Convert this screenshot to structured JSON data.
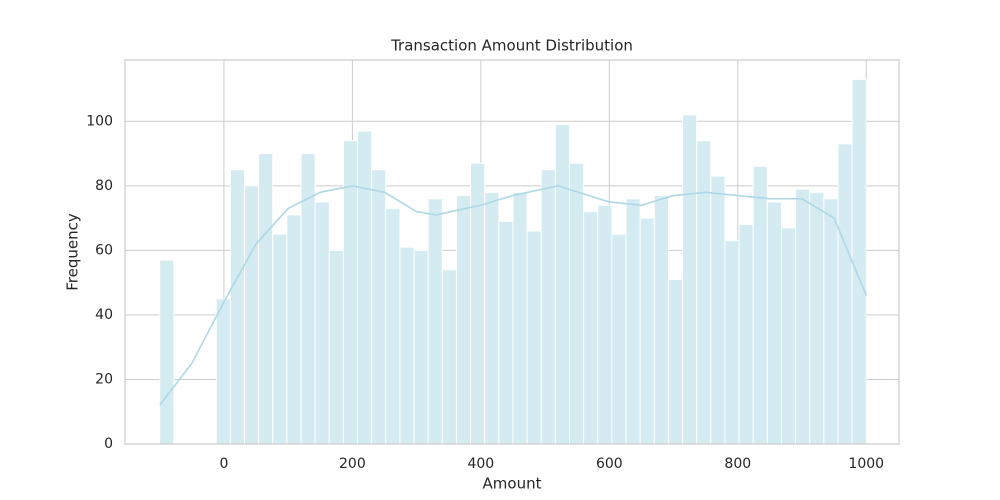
{
  "chart_data": {
    "type": "histogram",
    "title": "Transaction Amount Distribution",
    "xlabel": "Amount",
    "ylabel": "Frequency",
    "bins": [
      -100,
      -78,
      -56,
      -34,
      -12,
      10,
      32,
      54,
      76,
      98,
      120,
      142,
      164,
      186,
      208,
      230,
      252,
      274,
      296,
      318,
      340,
      362,
      384,
      406,
      428,
      450,
      472,
      494,
      516,
      538,
      560,
      582,
      604,
      626,
      648,
      670,
      692,
      714,
      736,
      758,
      780,
      802,
      824,
      846,
      868,
      890,
      912,
      934,
      956,
      978,
      1000
    ],
    "values": [
      57,
      0,
      0,
      0,
      45,
      85,
      80,
      90,
      65,
      71,
      90,
      75,
      60,
      94,
      97,
      85,
      73,
      61,
      60,
      76,
      54,
      77,
      87,
      78,
      69,
      78,
      66,
      85,
      99,
      87,
      72,
      74,
      65,
      76,
      70,
      77,
      51,
      102,
      94,
      83,
      63,
      68,
      86,
      75,
      67,
      79,
      78,
      76,
      93,
      113
    ],
    "color": "#d4ebf1",
    "kde": {
      "x": [
        -100,
        -50,
        0,
        50,
        100,
        150,
        200,
        250,
        300,
        330,
        400,
        450,
        520,
        600,
        650,
        700,
        750,
        800,
        850,
        900,
        950,
        1000
      ],
      "values": [
        12,
        25,
        44,
        62,
        73,
        78,
        80,
        78,
        72,
        71,
        74,
        77,
        80,
        75,
        74,
        77,
        78,
        77,
        76,
        76,
        70,
        46
      ],
      "color": "#add8e6"
    },
    "xlim": [
      -154,
      1051
    ],
    "ylim": [
      0,
      119
    ],
    "xticks": [
      0,
      200,
      400,
      600,
      800,
      1000
    ],
    "yticks": [
      0,
      20,
      40,
      60,
      80,
      100
    ],
    "grid": true
  }
}
